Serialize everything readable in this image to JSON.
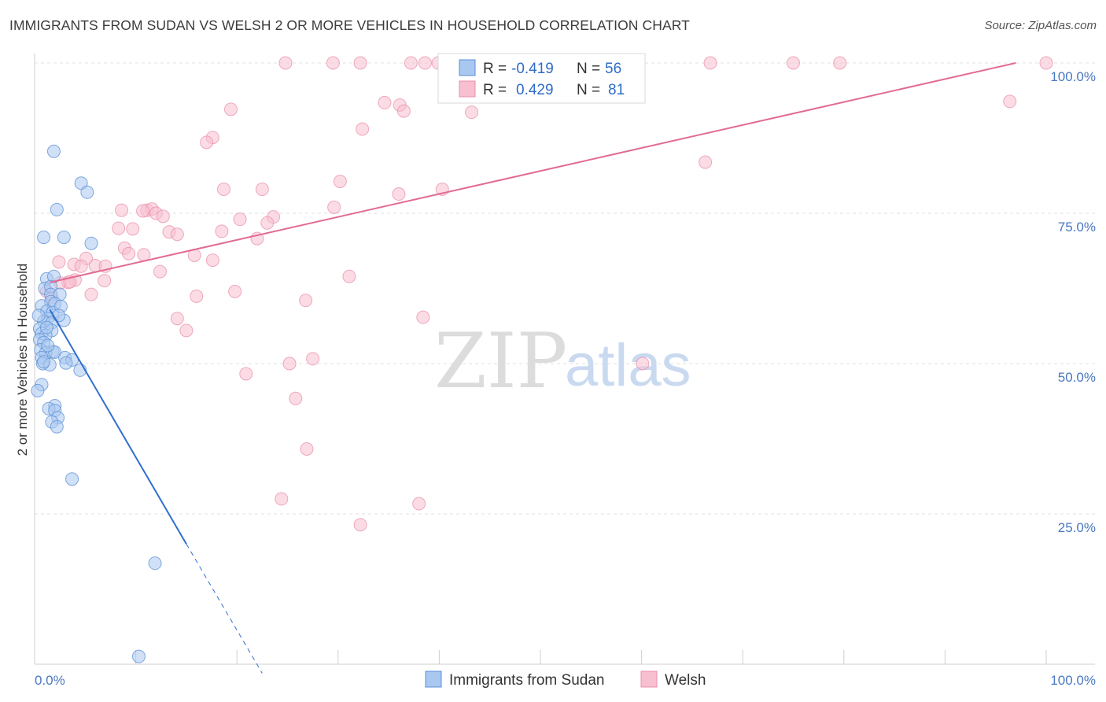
{
  "title": "IMMIGRANTS FROM SUDAN VS WELSH 2 OR MORE VEHICLES IN HOUSEHOLD CORRELATION CHART",
  "source": "Source: ZipAtlas.com",
  "watermark": {
    "zip": "ZIP",
    "atlas": "atlas"
  },
  "colors": {
    "blue_fill": "#a9c8f0",
    "blue_stroke": "#5b8fd6",
    "blue_line": "#2f6fd0",
    "pink_fill": "#f7bfd0",
    "pink_stroke": "#ea8fab",
    "pink_line": "#e26b93",
    "grid": "#e2e2e2",
    "axis_text": "#4a78c2"
  },
  "legend": {
    "r_label": "R =",
    "n_label": "N =",
    "series": [
      {
        "r": "-0.419",
        "n": "56"
      },
      {
        "r": "0.429",
        "n": "81"
      }
    ]
  },
  "chart_data": {
    "type": "scatter",
    "title": "IMMIGRANTS FROM SUDAN VS WELSH 2 OR MORE VEHICLES IN HOUSEHOLD CORRELATION CHART",
    "xlabel": "",
    "ylabel": "2 or more Vehicles in Household",
    "xlim": [
      0,
      100
    ],
    "ylim": [
      0,
      100
    ],
    "x_tick_labels": [
      "0.0%",
      "100.0%"
    ],
    "y_ticks": [
      25,
      50,
      75,
      100
    ],
    "y_tick_labels": [
      "25.0%",
      "50.0%",
      "75.0%",
      "100.0%"
    ],
    "grid": true,
    "legend_position": "top-center",
    "series": [
      {
        "name": "Immigrants from Sudan",
        "color": "#a9c8f0",
        "trend": {
          "x0": 1.5,
          "y0": 59.0,
          "x1": 15.0,
          "y1": 20.0,
          "dash_to_x": 22.5,
          "dash_to_y": -1.5
        },
        "points": [
          [
            1.9,
            85.3
          ],
          [
            4.6,
            80.0
          ],
          [
            5.2,
            78.5
          ],
          [
            2.2,
            75.6
          ],
          [
            0.9,
            71.0
          ],
          [
            2.9,
            71.0
          ],
          [
            5.6,
            70.0
          ],
          [
            1.2,
            64.1
          ],
          [
            1.9,
            64.5
          ],
          [
            1.0,
            62.5
          ],
          [
            1.6,
            62.8
          ],
          [
            1.6,
            61.5
          ],
          [
            2.5,
            61.5
          ],
          [
            1.6,
            60.3
          ],
          [
            2.0,
            60.0
          ],
          [
            0.7,
            59.6
          ],
          [
            1.2,
            58.7
          ],
          [
            1.8,
            58.5
          ],
          [
            1.3,
            57.5
          ],
          [
            0.9,
            57.0
          ],
          [
            1.7,
            56.8
          ],
          [
            2.9,
            57.2
          ],
          [
            0.5,
            55.8
          ],
          [
            1.7,
            55.5
          ],
          [
            0.7,
            55.0
          ],
          [
            1.1,
            54.7
          ],
          [
            0.5,
            54.0
          ],
          [
            0.9,
            53.5
          ],
          [
            0.6,
            52.3
          ],
          [
            1.8,
            52.0
          ],
          [
            1.1,
            51.8
          ],
          [
            2.0,
            51.9
          ],
          [
            0.7,
            51.0
          ],
          [
            3.0,
            51.0
          ],
          [
            3.7,
            50.6
          ],
          [
            0.8,
            50.0
          ],
          [
            1.5,
            49.8
          ],
          [
            3.1,
            50.1
          ],
          [
            4.5,
            48.9
          ],
          [
            0.7,
            46.5
          ],
          [
            0.3,
            45.5
          ],
          [
            2.0,
            43.0
          ],
          [
            1.4,
            42.5
          ],
          [
            2.0,
            42.2
          ],
          [
            2.3,
            41.0
          ],
          [
            1.7,
            40.3
          ],
          [
            2.2,
            39.5
          ],
          [
            3.7,
            30.8
          ],
          [
            11.9,
            16.8
          ],
          [
            10.3,
            1.3
          ],
          [
            0.4,
            58.0
          ],
          [
            2.6,
            59.5
          ],
          [
            1.3,
            53.0
          ],
          [
            0.9,
            50.3
          ],
          [
            1.2,
            56.0
          ],
          [
            2.4,
            58.0
          ]
        ]
      },
      {
        "name": "Welsh",
        "color": "#f7bfd0",
        "trend": {
          "x0": 1.5,
          "y0": 63.5,
          "x1": 97.0,
          "y1": 100.0
        },
        "points": [
          [
            24.8,
            100
          ],
          [
            29.5,
            100
          ],
          [
            32.2,
            100
          ],
          [
            37.2,
            100
          ],
          [
            38.6,
            100
          ],
          [
            39.9,
            100
          ],
          [
            40.9,
            100
          ],
          [
            42.0,
            100
          ],
          [
            47.6,
            100
          ],
          [
            50.0,
            100
          ],
          [
            66.8,
            100
          ],
          [
            75.0,
            100
          ],
          [
            79.6,
            100
          ],
          [
            100.0,
            100
          ],
          [
            34.6,
            93.4
          ],
          [
            36.1,
            93.0
          ],
          [
            19.4,
            92.3
          ],
          [
            36.5,
            92.0
          ],
          [
            43.2,
            91.8
          ],
          [
            32.4,
            89.0
          ],
          [
            17.6,
            87.6
          ],
          [
            17.0,
            86.8
          ],
          [
            96.4,
            93.6
          ],
          [
            66.3,
            83.5
          ],
          [
            30.2,
            80.3
          ],
          [
            18.7,
            79.0
          ],
          [
            22.5,
            79.0
          ],
          [
            36.0,
            78.2
          ],
          [
            40.3,
            79.0
          ],
          [
            8.6,
            75.5
          ],
          [
            11.1,
            75.5
          ],
          [
            11.6,
            75.7
          ],
          [
            10.7,
            75.4
          ],
          [
            12.0,
            75.0
          ],
          [
            12.7,
            74.5
          ],
          [
            20.3,
            74.0
          ],
          [
            23.6,
            74.4
          ],
          [
            23.0,
            73.4
          ],
          [
            29.6,
            76.0
          ],
          [
            8.3,
            72.5
          ],
          [
            9.7,
            72.4
          ],
          [
            13.3,
            71.9
          ],
          [
            14.1,
            71.5
          ],
          [
            18.5,
            72.0
          ],
          [
            22.0,
            70.8
          ],
          [
            8.9,
            69.2
          ],
          [
            9.3,
            68.3
          ],
          [
            10.8,
            68.1
          ],
          [
            15.8,
            68.0
          ],
          [
            17.6,
            67.2
          ],
          [
            5.1,
            67.5
          ],
          [
            2.4,
            66.9
          ],
          [
            3.9,
            66.5
          ],
          [
            4.6,
            66.2
          ],
          [
            6.0,
            66.3
          ],
          [
            7.0,
            66.2
          ],
          [
            12.4,
            65.3
          ],
          [
            4.0,
            63.9
          ],
          [
            3.3,
            63.5
          ],
          [
            6.9,
            63.8
          ],
          [
            2.5,
            63.4
          ],
          [
            31.1,
            64.5
          ],
          [
            1.2,
            62.0
          ],
          [
            1.7,
            61.0
          ],
          [
            5.6,
            61.5
          ],
          [
            19.8,
            62.0
          ],
          [
            16.0,
            61.2
          ],
          [
            26.8,
            60.5
          ],
          [
            14.1,
            57.5
          ],
          [
            38.4,
            57.7
          ],
          [
            15.0,
            55.5
          ],
          [
            25.2,
            50.0
          ],
          [
            27.5,
            50.8
          ],
          [
            60.1,
            50.0
          ],
          [
            20.9,
            48.3
          ],
          [
            25.8,
            44.2
          ],
          [
            26.9,
            35.8
          ],
          [
            24.4,
            27.5
          ],
          [
            38.0,
            26.7
          ],
          [
            32.2,
            23.2
          ],
          [
            3.5,
            63.6
          ]
        ]
      }
    ]
  },
  "bottom_legend": [
    {
      "label": "Immigrants from Sudan"
    },
    {
      "label": "Welsh"
    }
  ]
}
